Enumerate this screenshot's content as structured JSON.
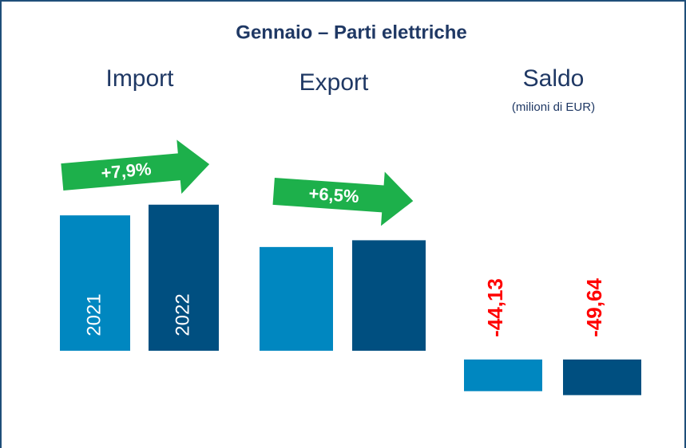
{
  "chart_data": {
    "type": "bar",
    "title": "Gennaio – Parti elettriche",
    "subtitle": "(milioni di EUR)",
    "categories": [
      "Import",
      "Export",
      "Saldo"
    ],
    "series": [
      {
        "name": "2021",
        "color": "#0087c0",
        "values": [
          188.7,
          144.6,
          -44.13
        ],
        "value_labels": [
          null,
          null,
          "-44,13"
        ]
      },
      {
        "name": "2022",
        "color": "#004f80",
        "values": [
          203.6,
          154.0,
          -49.64
        ],
        "value_labels": [
          null,
          null,
          "-49,64"
        ]
      }
    ],
    "annotations": [
      "+7,9%",
      "+6,5%"
    ],
    "arrow_color": "#1db04b"
  }
}
